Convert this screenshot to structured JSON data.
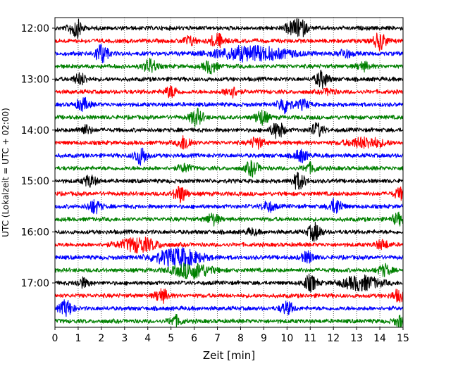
{
  "chart_data": {
    "type": "line",
    "title": "",
    "xlabel": "Zeit  [min]",
    "ylabel": "UTC (Lokalzeit = UTC + 02:00)",
    "xlim": [
      0,
      15
    ],
    "x_ticks": [
      "0",
      "1",
      "2",
      "3",
      "4",
      "5",
      "6",
      "7",
      "8",
      "9",
      "10",
      "11",
      "12",
      "13",
      "14",
      "15"
    ],
    "y_ticks": [
      "12:00",
      "13:00",
      "14:00",
      "15:00",
      "16:00",
      "17:00"
    ],
    "grid": "vertical-dotted",
    "trace_colors": [
      "#000000",
      "#ff0000",
      "#0000ff",
      "#008000"
    ],
    "trace_interval_min": 15,
    "traces": [
      {
        "start": "12:00",
        "color": "#000000",
        "events": [
          {
            "t": 0.9,
            "a": 1.7
          },
          {
            "t": 10.6,
            "a": 1.4
          },
          {
            "t": 10.2,
            "a": 1.0
          }
        ]
      },
      {
        "start": "12:15",
        "color": "#ff0000",
        "events": [
          {
            "t": 5.8,
            "a": 0.8
          },
          {
            "t": 7.0,
            "a": 1.3
          },
          {
            "t": 14.0,
            "a": 1.5
          }
        ]
      },
      {
        "start": "12:30",
        "color": "#0000ff",
        "events": [
          {
            "t": 2.0,
            "a": 1.8
          },
          {
            "t": 8.5,
            "a": 1.3,
            "w": 1.6
          },
          {
            "t": 12.5,
            "a": 0.8
          }
        ]
      },
      {
        "start": "12:45",
        "color": "#008000",
        "events": [
          {
            "t": 4.1,
            "a": 1.3
          },
          {
            "t": 6.7,
            "a": 1.2
          },
          {
            "t": 13.3,
            "a": 0.7
          }
        ]
      },
      {
        "start": "13:00",
        "color": "#000000",
        "events": [
          {
            "t": 1.1,
            "a": 1.0
          },
          {
            "t": 11.5,
            "a": 1.5
          }
        ]
      },
      {
        "start": "13:15",
        "color": "#ff0000",
        "events": [
          {
            "t": 5.0,
            "a": 1.0
          },
          {
            "t": 7.6,
            "a": 1.0
          },
          {
            "t": 11.8,
            "a": 0.5
          }
        ]
      },
      {
        "start": "13:30",
        "color": "#0000ff",
        "events": [
          {
            "t": 1.2,
            "a": 1.1
          },
          {
            "t": 9.9,
            "a": 1.5
          },
          {
            "t": 10.7,
            "a": 0.8
          }
        ]
      },
      {
        "start": "13:45",
        "color": "#008000",
        "events": [
          {
            "t": 6.1,
            "a": 1.5
          },
          {
            "t": 8.9,
            "a": 1.3
          }
        ]
      },
      {
        "start": "14:00",
        "color": "#000000",
        "events": [
          {
            "t": 1.3,
            "a": 0.8
          },
          {
            "t": 9.6,
            "a": 1.5
          },
          {
            "t": 11.3,
            "a": 1.2
          }
        ]
      },
      {
        "start": "14:15",
        "color": "#ff0000",
        "events": [
          {
            "t": 5.6,
            "a": 1.3
          },
          {
            "t": 8.7,
            "a": 1.0
          },
          {
            "t": 13.4,
            "a": 0.9,
            "w": 0.8
          }
        ]
      },
      {
        "start": "14:30",
        "color": "#0000ff",
        "events": [
          {
            "t": 3.7,
            "a": 1.6
          },
          {
            "t": 10.6,
            "a": 1.1
          }
        ]
      },
      {
        "start": "14:45",
        "color": "#008000",
        "events": [
          {
            "t": 5.6,
            "a": 0.7
          },
          {
            "t": 8.5,
            "a": 1.3
          },
          {
            "t": 11.0,
            "a": 0.8
          }
        ]
      },
      {
        "start": "15:00",
        "color": "#000000",
        "events": [
          {
            "t": 1.5,
            "a": 1.0
          },
          {
            "t": 10.5,
            "a": 1.5
          }
        ]
      },
      {
        "start": "15:15",
        "color": "#ff0000",
        "events": [
          {
            "t": 5.4,
            "a": 1.5
          },
          {
            "t": 14.9,
            "a": 1.0
          }
        ]
      },
      {
        "start": "15:30",
        "color": "#0000ff",
        "events": [
          {
            "t": 1.7,
            "a": 1.2
          },
          {
            "t": 9.2,
            "a": 0.9
          },
          {
            "t": 12.1,
            "a": 1.4
          }
        ]
      },
      {
        "start": "15:45",
        "color": "#008000",
        "events": [
          {
            "t": 6.8,
            "a": 1.0
          },
          {
            "t": 14.8,
            "a": 1.0
          }
        ]
      },
      {
        "start": "16:00",
        "color": "#000000",
        "events": [
          {
            "t": 11.2,
            "a": 1.6
          },
          {
            "t": 8.5,
            "a": 0.5
          }
        ]
      },
      {
        "start": "16:15",
        "color": "#ff0000",
        "events": [
          {
            "t": 3.6,
            "a": 1.3,
            "w": 0.8
          },
          {
            "t": 14.1,
            "a": 0.8
          }
        ]
      },
      {
        "start": "16:30",
        "color": "#0000ff",
        "events": [
          {
            "t": 5.3,
            "a": 1.6,
            "w": 1.0
          },
          {
            "t": 10.9,
            "a": 1.0
          }
        ]
      },
      {
        "start": "16:45",
        "color": "#008000",
        "events": [
          {
            "t": 5.9,
            "a": 1.4,
            "w": 0.8
          },
          {
            "t": 14.2,
            "a": 1.0
          }
        ]
      },
      {
        "start": "17:00",
        "color": "#000000",
        "events": [
          {
            "t": 1.2,
            "a": 0.8
          },
          {
            "t": 11.0,
            "a": 1.4
          },
          {
            "t": 13.2,
            "a": 1.3,
            "w": 0.8
          }
        ]
      },
      {
        "start": "17:15",
        "color": "#ff0000",
        "events": [
          {
            "t": 4.6,
            "a": 1.2
          },
          {
            "t": 14.8,
            "a": 1.0
          }
        ]
      },
      {
        "start": "17:30",
        "color": "#0000ff",
        "events": [
          {
            "t": 0.5,
            "a": 1.4
          },
          {
            "t": 10.0,
            "a": 1.1
          }
        ]
      },
      {
        "start": "17:45",
        "color": "#008000",
        "events": [
          {
            "t": 5.2,
            "a": 0.9
          },
          {
            "t": 14.9,
            "a": 1.0
          }
        ]
      }
    ]
  }
}
